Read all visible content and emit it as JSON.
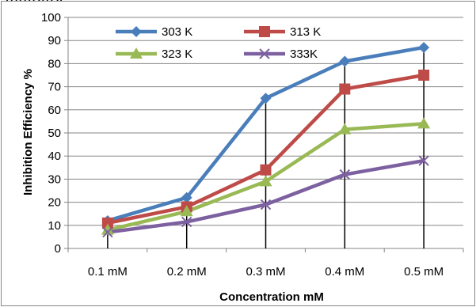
{
  "page": {
    "top_text": "inhibitor."
  },
  "chart_data": {
    "type": "line",
    "xlabel": "Concentration mM",
    "ylabel": "Inhibition Efficiency %",
    "categories": [
      "0.1 mM",
      "0.2 mM",
      "0.3 mM",
      "0.4 mM",
      "0.5 mM"
    ],
    "ylim": [
      0,
      100
    ],
    "ytick_step": 10,
    "grid": "horizontal",
    "legend_position": "top-left",
    "series": [
      {
        "name": "303 K",
        "values": [
          12,
          22,
          65,
          81,
          87
        ],
        "color": "#4a7ebb",
        "marker": "diamond"
      },
      {
        "name": "313 K",
        "values": [
          11,
          18,
          34,
          69,
          75
        ],
        "color": "#be4b48",
        "marker": "square"
      },
      {
        "name": "323 K",
        "values": [
          8,
          16,
          29,
          51.5,
          54
        ],
        "color": "#98b954",
        "marker": "triangle"
      },
      {
        "name": "333K",
        "values": [
          7,
          11.5,
          19,
          32,
          38
        ],
        "color": "#7d60a0",
        "marker": "x"
      }
    ]
  }
}
